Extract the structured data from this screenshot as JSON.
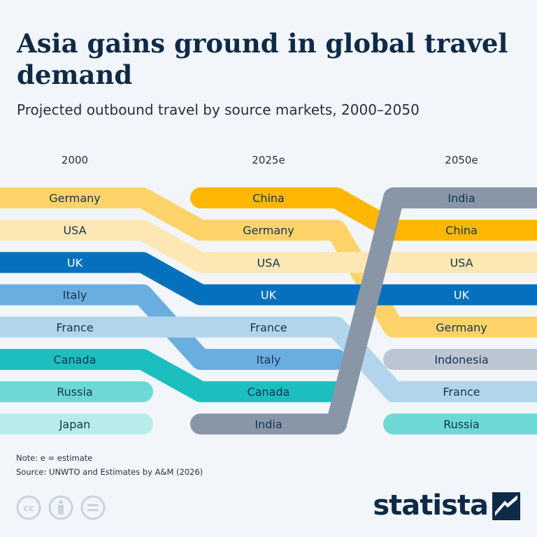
{
  "title": "Asia gains ground in global travel demand",
  "subtitle": "Projected outbound travel by source markets, 2000–2050",
  "chart_data": {
    "type": "bump",
    "columns": [
      "2000",
      "2025e",
      "2050e"
    ],
    "series": [
      {
        "name": "Germany",
        "ranks": [
          1,
          2,
          5
        ],
        "color": "#fdd36a"
      },
      {
        "name": "USA",
        "ranks": [
          2,
          3,
          3
        ],
        "color": "#fde8b5"
      },
      {
        "name": "UK",
        "ranks": [
          3,
          4,
          4
        ],
        "color": "#0571be"
      },
      {
        "name": "Italy",
        "ranks": [
          4,
          6,
          null
        ],
        "color": "#6aaee0"
      },
      {
        "name": "France",
        "ranks": [
          5,
          5,
          7
        ],
        "color": "#b3d5ec"
      },
      {
        "name": "Canada",
        "ranks": [
          6,
          7,
          null
        ],
        "color": "#1cbfbe"
      },
      {
        "name": "Russia",
        "ranks": [
          7,
          null,
          8
        ],
        "color": "#6ed8d5"
      },
      {
        "name": "Japan",
        "ranks": [
          8,
          null,
          null
        ],
        "color": "#b8ecea"
      },
      {
        "name": "China",
        "ranks": [
          null,
          1,
          2
        ],
        "color": "#ffb703"
      },
      {
        "name": "India",
        "ranks": [
          null,
          8,
          1
        ],
        "color": "#8896a8"
      },
      {
        "name": "Indonesia",
        "ranks": [
          null,
          null,
          6
        ],
        "color": "#bcc5d2"
      }
    ]
  },
  "footer": {
    "note": "Note: e = estimate",
    "source": "Source: UNWTO and Estimates by A&M (2026)"
  },
  "icons": [
    "cc-icon",
    "by-icon",
    "nd-icon"
  ],
  "brand": {
    "name": "statista",
    "color": "#0f2a47"
  }
}
